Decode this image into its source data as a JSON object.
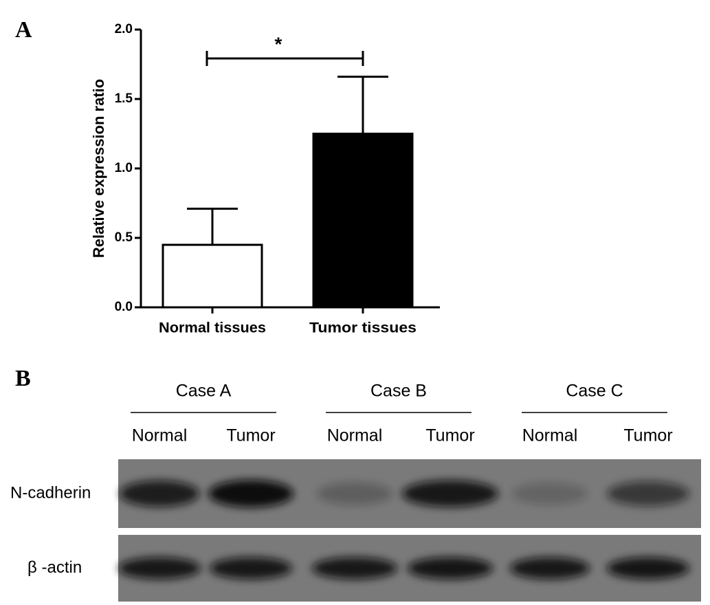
{
  "panel_labels": [
    "A",
    "B"
  ],
  "chart_data": {
    "type": "bar",
    "ylabel": "Relative expression ratio",
    "categories": [
      "Normal tissues",
      "Tumor tissues"
    ],
    "values": [
      0.45,
      1.25
    ],
    "errors": [
      0.26,
      0.41
    ],
    "colors": [
      "#ffffff",
      "#000000"
    ],
    "ylim": [
      0,
      2.0
    ],
    "yticks": [
      {
        "value": 0,
        "label": "0.0"
      },
      0.5,
      {
        "value": 1,
        "label": "1.0"
      },
      1.5,
      {
        "value": 2,
        "label": "2.0"
      }
    ],
    "annotation": "*"
  },
  "blot": {
    "cases": [
      "Case A",
      "Case B",
      "Case C"
    ],
    "lanes": [
      "Normal",
      "Tumor",
      "Normal",
      "Tumor",
      "Normal",
      "Tumor"
    ],
    "rows": [
      "N-cadherin",
      "β -actin"
    ]
  }
}
